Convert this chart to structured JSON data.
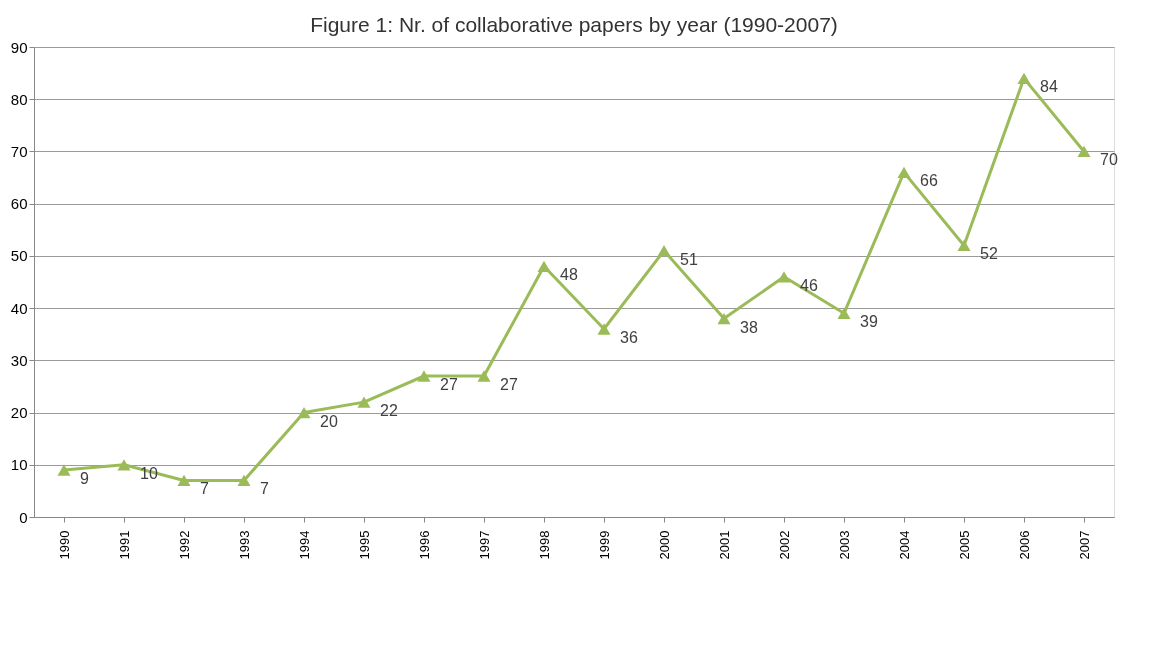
{
  "chart_data": {
    "type": "line",
    "title": "Figure 1: Nr. of collaborative papers by year (1990-2007)",
    "categories": [
      "1990",
      "1991",
      "1992",
      "1993",
      "1994",
      "1995",
      "1996",
      "1997",
      "1998",
      "1999",
      "2000",
      "2001",
      "2002",
      "2003",
      "2004",
      "2005",
      "2006",
      "2007"
    ],
    "series": [
      {
        "color": "#9bbb59",
        "values": [
          9,
          10,
          7,
          7,
          20,
          22,
          27,
          27,
          48,
          36,
          51,
          38,
          46,
          39,
          66,
          52,
          84,
          70
        ]
      }
    ],
    "ylim": [
      0,
      90
    ],
    "yticks": [
      0,
      10,
      20,
      30,
      40,
      50,
      60,
      70,
      80,
      90
    ],
    "grid": "y",
    "marker": "triangle",
    "line_style": "solid",
    "data_labels": true
  }
}
